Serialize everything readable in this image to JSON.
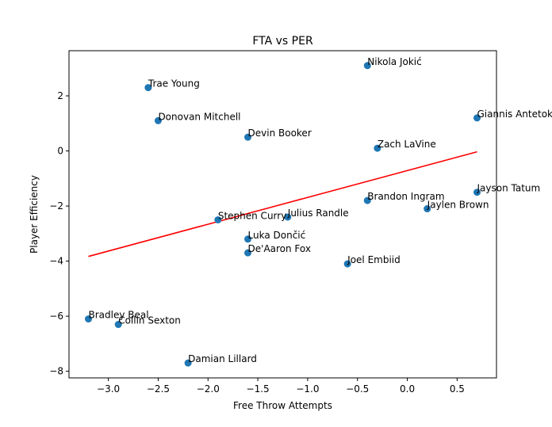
{
  "chart_data": {
    "type": "scatter",
    "title": "FTA vs PER",
    "xlabel": "Free Throw Attempts",
    "ylabel": "Player Efficiency",
    "xlim": [
      -3.395,
      0.895
    ],
    "ylim": [
      -8.24,
      3.64
    ],
    "xticks": [
      -3.0,
      -2.5,
      -2.0,
      -1.5,
      -1.0,
      -0.5,
      0.0,
      0.5
    ],
    "xtick_labels": [
      "−3.0",
      "−2.5",
      "−2.0",
      "−1.5",
      "−1.0",
      "−0.5",
      "0.0",
      "0.5"
    ],
    "yticks": [
      -8,
      -6,
      -4,
      -2,
      0,
      2
    ],
    "ytick_labels": [
      "−8",
      "−6",
      "−4",
      "−2",
      "0",
      "2"
    ],
    "grid": false,
    "points": [
      {
        "label": "Nikola Jokić",
        "x": -0.4,
        "y": 3.1
      },
      {
        "label": "Trae Young",
        "x": -2.6,
        "y": 2.3
      },
      {
        "label": "Giannis Antetokounmpo",
        "x": 0.7,
        "y": 1.2
      },
      {
        "label": "Donovan Mitchell",
        "x": -2.5,
        "y": 1.1
      },
      {
        "label": "Devin Booker",
        "x": -1.6,
        "y": 0.5
      },
      {
        "label": "Zach LaVine",
        "x": -0.3,
        "y": 0.1
      },
      {
        "label": "Jayson Tatum",
        "x": 0.7,
        "y": -1.5
      },
      {
        "label": "Brandon Ingram",
        "x": -0.4,
        "y": -1.8
      },
      {
        "label": "Jaylen Brown",
        "x": 0.2,
        "y": -2.1
      },
      {
        "label": "Julius Randle",
        "x": -1.2,
        "y": -2.4
      },
      {
        "label": "Stephen Curry",
        "x": -1.9,
        "y": -2.5
      },
      {
        "label": "Luka Dončić",
        "x": -1.6,
        "y": -3.2
      },
      {
        "label": "De'Aaron Fox",
        "x": -1.6,
        "y": -3.7
      },
      {
        "label": "Joel Embiid",
        "x": -0.6,
        "y": -4.1
      },
      {
        "label": "Bradley Beal",
        "x": -3.2,
        "y": -6.1
      },
      {
        "label": "Collin Sexton",
        "x": -2.9,
        "y": -6.3
      },
      {
        "label": "Damian Lillard",
        "x": -2.2,
        "y": -7.7
      }
    ],
    "trendline": {
      "x": [
        -3.2,
        0.7
      ],
      "y": [
        -3.83,
        -0.03
      ]
    },
    "colors": {
      "points": "#1f77b4",
      "trendline": "#ff0000",
      "axes": "#000000"
    }
  }
}
